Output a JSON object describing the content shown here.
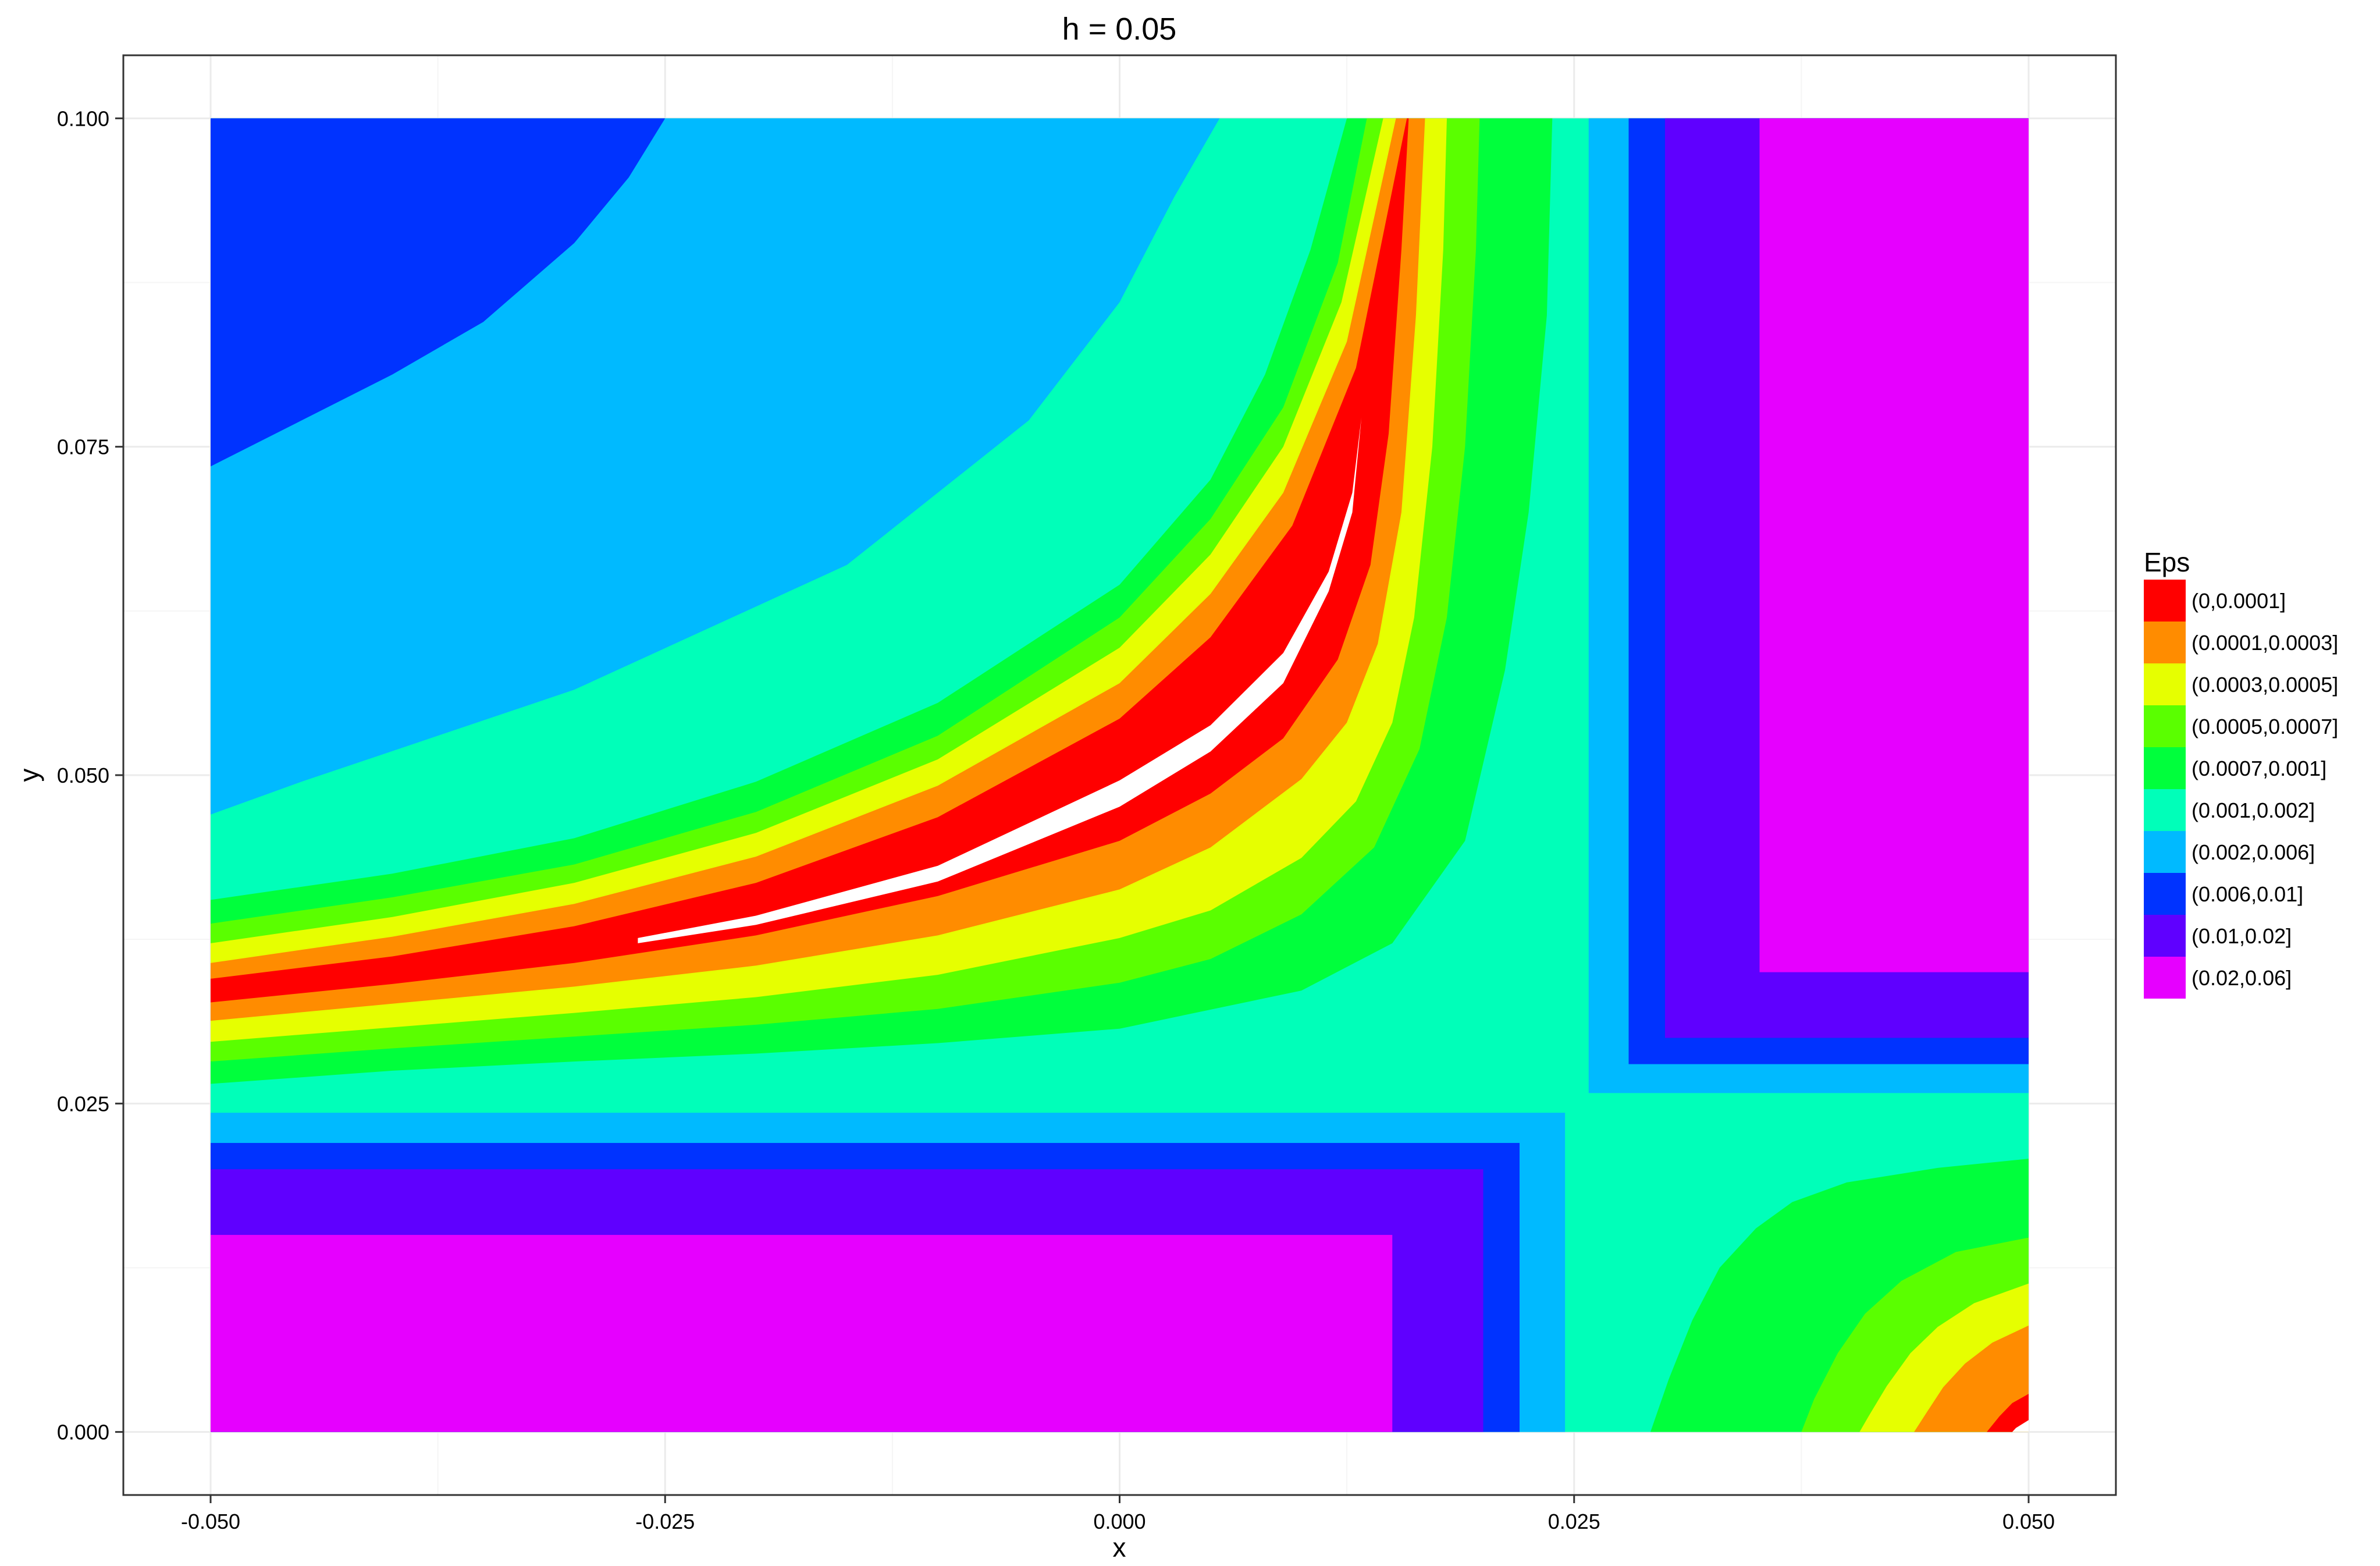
{
  "chart_data": {
    "type": "heatmap",
    "title": "h = 0.05",
    "xlabel": "x",
    "ylabel": "y",
    "xlim": [
      -0.0548,
      0.0548
    ],
    "ylim": [
      -0.0048,
      0.1048
    ],
    "x_ticks": [
      -0.05,
      -0.025,
      0.0,
      0.025,
      0.05
    ],
    "x_tick_labels": [
      "-0.050",
      "-0.025",
      "0.000",
      "0.025",
      "0.050"
    ],
    "y_ticks": [
      0.0,
      0.025,
      0.05,
      0.075,
      0.1
    ],
    "y_tick_labels": [
      "0.000",
      "0.025",
      "0.050",
      "0.075",
      "0.100"
    ],
    "grid": true,
    "legend": {
      "title": "Eps",
      "placement": "right",
      "entries": [
        {
          "label": "(0,0.0001]",
          "color": "#FF0000"
        },
        {
          "label": "(0.0001,0.0003]",
          "color": "#FF8C00"
        },
        {
          "label": "(0.0003,0.0005]",
          "color": "#E6FF00"
        },
        {
          "label": "(0.0005,0.0007]",
          "color": "#5AFF00"
        },
        {
          "label": "(0.0007,0.001]",
          "color": "#00FF3C"
        },
        {
          "label": "(0.001,0.002]",
          "color": "#00FFB9"
        },
        {
          "label": "(0.002,0.006]",
          "color": "#00BAFF"
        },
        {
          "label": "(0.006,0.01]",
          "color": "#0033FF"
        },
        {
          "label": "(0.01,0.02]",
          "color": "#5F00FF"
        },
        {
          "label": "(0.02,0.06]",
          "color": "#E600FF"
        }
      ]
    },
    "data_extent": {
      "x": [
        -0.05,
        0.05
      ],
      "y": [
        0.0,
        0.1
      ]
    },
    "region_boundaries": {
      "bottom_left_blocks": [
        {
          "class": "(0.02,0.06]",
          "x": [
            -0.05,
            0.015
          ],
          "y": [
            0.0,
            0.015
          ]
        },
        {
          "class": "(0.01,0.02]",
          "x": [
            -0.05,
            0.02
          ],
          "y": [
            0.0,
            0.02
          ]
        },
        {
          "class": "(0.006,0.01]",
          "x": [
            -0.05,
            0.022
          ],
          "y": [
            0.0,
            0.022
          ]
        },
        {
          "class": "(0.002,0.006]",
          "x": [
            -0.05,
            0.0245
          ],
          "y": [
            0.0,
            0.0243
          ]
        }
      ],
      "top_right_blocks": [
        {
          "class": "(0.02,0.06]",
          "x": [
            0.0352,
            0.05
          ],
          "y": [
            0.035,
            0.1
          ]
        },
        {
          "class": "(0.01,0.02]",
          "x": [
            0.03,
            0.05
          ],
          "y": [
            0.03,
            0.1
          ]
        },
        {
          "class": "(0.006,0.01]",
          "x": [
            0.028,
            0.05
          ],
          "y": [
            0.028,
            0.1
          ]
        },
        {
          "class": "(0.002,0.006]",
          "x": [
            0.0258,
            0.05
          ],
          "y": [
            0.0258,
            0.1
          ]
        }
      ],
      "top_left_corner_arcs": [
        {
          "class": "(0.002,0.006]",
          "points": [
            [
              -0.05,
              0.047
            ],
            [
              -0.045,
              0.0495
            ],
            [
              -0.03,
              0.0565
            ],
            [
              -0.015,
              0.066
            ],
            [
              -0.005,
              0.077
            ],
            [
              0.0,
              0.086
            ],
            [
              0.003,
              0.094
            ],
            [
              0.0055,
              0.1
            ]
          ]
        },
        {
          "class": "(0.006,0.01]",
          "points": [
            [
              -0.05,
              0.0735
            ],
            [
              -0.045,
              0.077
            ],
            [
              -0.04,
              0.0805
            ],
            [
              -0.035,
              0.0845
            ],
            [
              -0.03,
              0.0905
            ],
            [
              -0.027,
              0.0955
            ],
            [
              -0.025,
              0.1
            ]
          ]
        }
      ],
      "main_valley_bands": [
        {
          "class": "(0.0007,0.001]",
          "upper": [
            [
              -0.05,
              0.0405
            ],
            [
              -0.04,
              0.0425
            ],
            [
              -0.03,
              0.0452
            ],
            [
              -0.02,
              0.0495
            ],
            [
              -0.01,
              0.0555
            ],
            [
              0.0,
              0.0645
            ],
            [
              0.005,
              0.0725
            ],
            [
              0.008,
              0.0805
            ],
            [
              0.0105,
              0.09
            ],
            [
              0.0125,
              0.1
            ]
          ],
          "lower": [
            [
              -0.05,
              0.0265
            ],
            [
              -0.04,
              0.0275
            ],
            [
              -0.03,
              0.0282
            ],
            [
              -0.02,
              0.0288
            ],
            [
              -0.01,
              0.0296
            ],
            [
              0.0,
              0.0307
            ],
            [
              0.01,
              0.0336
            ],
            [
              0.015,
              0.0372
            ],
            [
              0.019,
              0.045
            ],
            [
              0.0212,
              0.058
            ],
            [
              0.0225,
              0.07
            ],
            [
              0.0235,
              0.085
            ],
            [
              0.0238,
              0.1
            ]
          ]
        },
        {
          "class": "(0.0005,0.0007]",
          "upper": [
            [
              -0.05,
              0.0387
            ],
            [
              -0.04,
              0.0407
            ],
            [
              -0.03,
              0.0432
            ],
            [
              -0.02,
              0.0472
            ],
            [
              -0.01,
              0.053
            ],
            [
              0.0,
              0.062
            ],
            [
              0.005,
              0.0695
            ],
            [
              0.009,
              0.078
            ],
            [
              0.012,
              0.089
            ],
            [
              0.0136,
              0.1
            ]
          ],
          "lower": [
            [
              -0.05,
              0.0282
            ],
            [
              -0.04,
              0.0292
            ],
            [
              -0.03,
              0.0301
            ],
            [
              -0.02,
              0.031
            ],
            [
              -0.01,
              0.0322
            ],
            [
              0.0,
              0.0342
            ],
            [
              0.005,
              0.036
            ],
            [
              0.01,
              0.0394
            ],
            [
              0.014,
              0.0445
            ],
            [
              0.0165,
              0.052
            ],
            [
              0.018,
              0.062
            ],
            [
              0.019,
              0.075
            ],
            [
              0.0196,
              0.09
            ],
            [
              0.0198,
              0.1
            ]
          ]
        },
        {
          "class": "(0.0003,0.0005]",
          "upper": [
            [
              -0.05,
              0.0372
            ],
            [
              -0.04,
              0.0392
            ],
            [
              -0.03,
              0.0418
            ],
            [
              -0.02,
              0.0456
            ],
            [
              -0.01,
              0.0512
            ],
            [
              0.0,
              0.0597
            ],
            [
              0.005,
              0.0668
            ],
            [
              0.009,
              0.075
            ],
            [
              0.0122,
              0.086
            ],
            [
              0.0145,
              0.1
            ]
          ],
          "lower": [
            [
              -0.05,
              0.0297
            ],
            [
              -0.04,
              0.0308
            ],
            [
              -0.03,
              0.0319
            ],
            [
              -0.02,
              0.0331
            ],
            [
              -0.01,
              0.0348
            ],
            [
              0.0,
              0.0376
            ],
            [
              0.005,
              0.0397
            ],
            [
              0.01,
              0.0437
            ],
            [
              0.013,
              0.048
            ],
            [
              0.015,
              0.054
            ],
            [
              0.0162,
              0.062
            ],
            [
              0.0172,
              0.075
            ],
            [
              0.0178,
              0.09
            ],
            [
              0.018,
              0.1
            ]
          ]
        },
        {
          "class": "(0.0001,0.0003]",
          "upper": [
            [
              -0.05,
              0.0357
            ],
            [
              -0.04,
              0.0377
            ],
            [
              -0.03,
              0.0402
            ],
            [
              -0.02,
              0.0438
            ],
            [
              -0.01,
              0.0492
            ],
            [
              0.0,
              0.057
            ],
            [
              0.005,
              0.0638
            ],
            [
              0.009,
              0.0715
            ],
            [
              0.0125,
              0.083
            ],
            [
              0.0152,
              0.1
            ]
          ],
          "lower": [
            [
              -0.05,
              0.0313
            ],
            [
              -0.04,
              0.0326
            ],
            [
              -0.03,
              0.0339
            ],
            [
              -0.02,
              0.0355
            ],
            [
              -0.01,
              0.0378
            ],
            [
              0.0,
              0.0413
            ],
            [
              0.005,
              0.0445
            ],
            [
              0.01,
              0.0497
            ],
            [
              0.0125,
              0.054
            ],
            [
              0.0142,
              0.06
            ],
            [
              0.0155,
              0.07
            ],
            [
              0.0163,
              0.085
            ],
            [
              0.0168,
              0.1
            ]
          ]
        },
        {
          "class": "(0,0.0001]",
          "upper": [
            [
              -0.05,
              0.0345
            ],
            [
              -0.04,
              0.0362
            ],
            [
              -0.03,
              0.0385
            ],
            [
              -0.02,
              0.0418
            ],
            [
              -0.01,
              0.0468
            ],
            [
              0.0,
              0.0543
            ],
            [
              0.005,
              0.0605
            ],
            [
              0.0095,
              0.069
            ],
            [
              0.013,
              0.081
            ],
            [
              0.0158,
              0.1
            ]
          ],
          "lower": [
            [
              -0.05,
              0.0327
            ],
            [
              -0.04,
              0.0341
            ],
            [
              -0.03,
              0.0357
            ],
            [
              -0.02,
              0.0378
            ],
            [
              -0.01,
              0.0408
            ],
            [
              0.0,
              0.045
            ],
            [
              0.005,
              0.0486
            ],
            [
              0.009,
              0.0528
            ],
            [
              0.012,
              0.0588
            ],
            [
              0.0138,
              0.066
            ],
            [
              0.0148,
              0.076
            ],
            [
              0.0155,
              0.09
            ],
            [
              0.0159,
              0.1
            ]
          ]
        }
      ],
      "white_sliver": {
        "points": [
          [
            -0.0265,
            0.0372
          ],
          [
            -0.02,
            0.0386
          ],
          [
            -0.01,
            0.0419
          ],
          [
            0.0,
            0.0476
          ],
          [
            0.005,
            0.0518
          ],
          [
            0.009,
            0.057
          ],
          [
            0.0115,
            0.064
          ],
          [
            0.0128,
            0.07
          ],
          [
            0.0133,
            0.0772
          ],
          [
            0.0128,
            0.0715
          ],
          [
            0.0115,
            0.0655
          ],
          [
            0.009,
            0.0593
          ],
          [
            0.005,
            0.0538
          ],
          [
            0.0,
            0.0496
          ],
          [
            -0.01,
            0.0431
          ],
          [
            -0.02,
            0.0393
          ],
          [
            -0.0265,
            0.0376
          ]
        ]
      },
      "bottom_right_bands": [
        {
          "class": "(0.0007,0.001]",
          "upper": [
            [
              0.05,
              0.0208
            ],
            [
              0.045,
              0.0201
            ],
            [
              0.04,
              0.019
            ],
            [
              0.037,
              0.0175
            ],
            [
              0.035,
              0.0155
            ],
            [
              0.033,
              0.0125
            ],
            [
              0.0315,
              0.0085
            ],
            [
              0.0302,
              0.004
            ],
            [
              0.0292,
              0.0
            ]
          ]
        },
        {
          "class": "(0.0005,0.0007]",
          "upper": [
            [
              0.05,
              0.0148
            ],
            [
              0.046,
              0.0137
            ],
            [
              0.043,
              0.0115
            ],
            [
              0.041,
              0.009
            ],
            [
              0.0395,
              0.006
            ],
            [
              0.0382,
              0.0025
            ],
            [
              0.0375,
              0.0
            ]
          ]
        },
        {
          "class": "(0.0003,0.0005]",
          "upper": [
            [
              0.05,
              0.0113
            ],
            [
              0.047,
              0.0098
            ],
            [
              0.045,
              0.008
            ],
            [
              0.0435,
              0.006
            ],
            [
              0.0422,
              0.0035
            ],
            [
              0.0412,
              0.0012
            ],
            [
              0.0407,
              0.0
            ]
          ]
        },
        {
          "class": "(0.0001,0.0003]",
          "upper": [
            [
              0.05,
              0.0081
            ],
            [
              0.048,
              0.0068
            ],
            [
              0.0465,
              0.0052
            ],
            [
              0.0453,
              0.0034
            ],
            [
              0.0444,
              0.0015
            ],
            [
              0.0437,
              0.0
            ]
          ]
        },
        {
          "class": "(0,0.0001]",
          "upper": [
            [
              0.05,
              0.0029
            ],
            [
              0.0491,
              0.0022
            ],
            [
              0.0484,
              0.0012
            ],
            [
              0.0477,
              0.0
            ]
          ]
        },
        {
          "class": "white",
          "upper": [
            [
              0.05,
              0.0009
            ],
            [
              0.0493,
              0.0003
            ],
            [
              0.0491,
              0.0
            ]
          ]
        }
      ]
    }
  }
}
